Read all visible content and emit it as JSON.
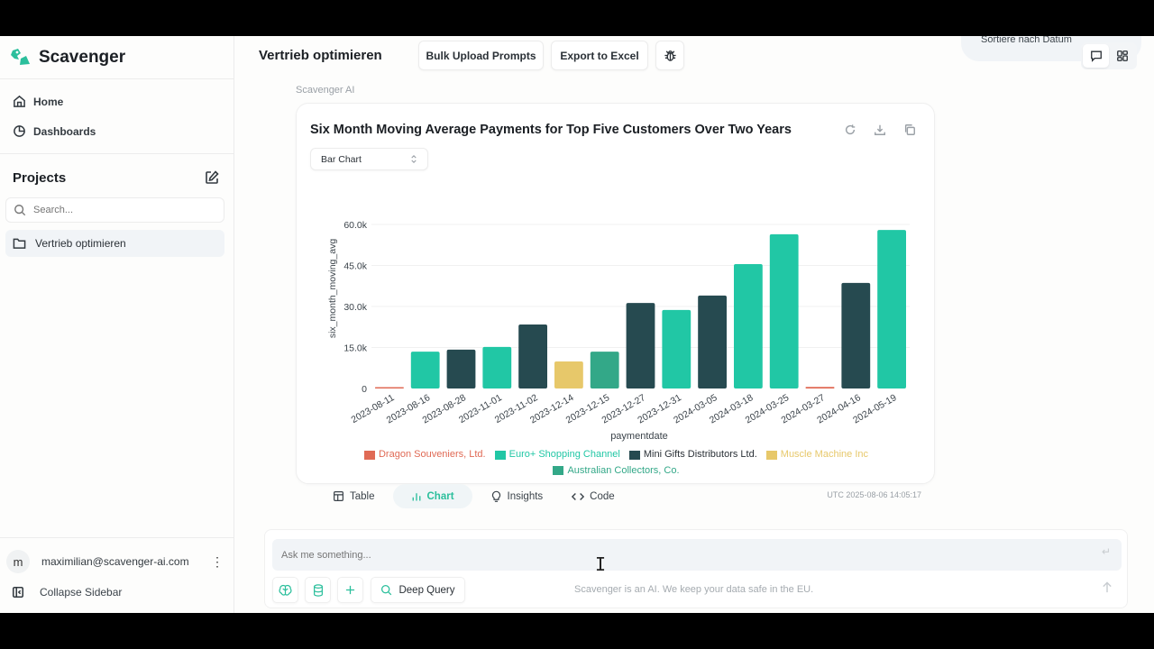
{
  "app": {
    "brand_name": "Scavenger",
    "colors": {
      "accent": "#2bbf9c",
      "dark": "#264a50"
    }
  },
  "sidebar": {
    "nav": [
      {
        "label": "Home",
        "icon": "home-icon"
      },
      {
        "label": "Dashboards",
        "icon": "pie-chart-icon"
      }
    ],
    "projects_title": "Projects",
    "search_placeholder": "Search...",
    "projects": [
      {
        "label": "Vertrieb optimieren",
        "icon": "folder-icon"
      }
    ],
    "user": {
      "avatar_initial": "m",
      "email": "maximilian@scavenger-ai.com"
    },
    "collapse_label": "Collapse Sidebar"
  },
  "header": {
    "title": "Vertrieb optimieren",
    "bulk_upload_label": "Bulk Upload Prompts",
    "export_label": "Export to Excel",
    "debug_icon": "bug-icon",
    "sort_label": "Sortiere nach Datum"
  },
  "message": {
    "sender": "Scavenger AI",
    "chart_type_select": "Bar Chart",
    "tabs": [
      {
        "label": "Table",
        "icon": "table-icon"
      },
      {
        "label": "Chart",
        "icon": "bar-chart-icon",
        "active": true
      },
      {
        "label": "Insights",
        "icon": "lightbulb-icon"
      },
      {
        "label": "Code",
        "icon": "code-icon"
      }
    ],
    "timestamp": "UTC 2025-08-06 14:05:17"
  },
  "chart_data": {
    "type": "bar",
    "title": "Six Month Moving Average Payments for Top Five Customers Over Two Years",
    "xlabel": "paymentdate",
    "ylabel": "six_month_moving_avg",
    "ylim": [
      0,
      60000
    ],
    "yticks": [
      0,
      15000,
      30000,
      45000,
      60000
    ],
    "ytick_labels": [
      "0",
      "15.0k",
      "30.0k",
      "45.0k",
      "60.0k"
    ],
    "grid": true,
    "legend_position": "bottom",
    "categories": [
      "2023-08-11",
      "2023-08-16",
      "2023-08-28",
      "2023-11-01",
      "2023-11-02",
      "2023-12-14",
      "2023-12-15",
      "2023-12-27",
      "2023-12-31",
      "2024-03-05",
      "2024-03-18",
      "2024-03-25",
      "2024-03-27",
      "2024-04-16",
      "2024-05-19"
    ],
    "values": [
      300,
      13500,
      14200,
      15200,
      23400,
      9900,
      13500,
      31300,
      28700,
      34000,
      45500,
      56400,
      600,
      38600,
      58000
    ],
    "bar_series": [
      "Dragon Souveniers, Ltd.",
      "Euro+ Shopping Channel",
      "Mini Gifts Distributors Ltd.",
      "Euro+ Shopping Channel",
      "Mini Gifts Distributors Ltd.",
      "Muscle Machine Inc",
      "Australian Collectors, Co.",
      "Mini Gifts Distributors Ltd.",
      "Euro+ Shopping Channel",
      "Mini Gifts Distributors Ltd.",
      "Euro+ Shopping Channel",
      "Euro+ Shopping Channel",
      "Dragon Souveniers, Ltd.",
      "Mini Gifts Distributors Ltd.",
      "Euro+ Shopping Channel"
    ],
    "series": [
      {
        "name": "Dragon Souveniers, Ltd.",
        "color": "#e06a55"
      },
      {
        "name": "Euro+ Shopping Channel",
        "color": "#21c7a5"
      },
      {
        "name": "Mini Gifts Distributors Ltd.",
        "color": "#264a50"
      },
      {
        "name": "Muscle Machine Inc",
        "color": "#e7c86a"
      },
      {
        "name": "Australian Collectors, Co.",
        "color": "#33a888"
      }
    ]
  },
  "composer": {
    "placeholder": "Ask me something...",
    "deep_query_label": "Deep Query",
    "disclaimer": "Scavenger is an AI. We keep your data safe in the EU."
  }
}
